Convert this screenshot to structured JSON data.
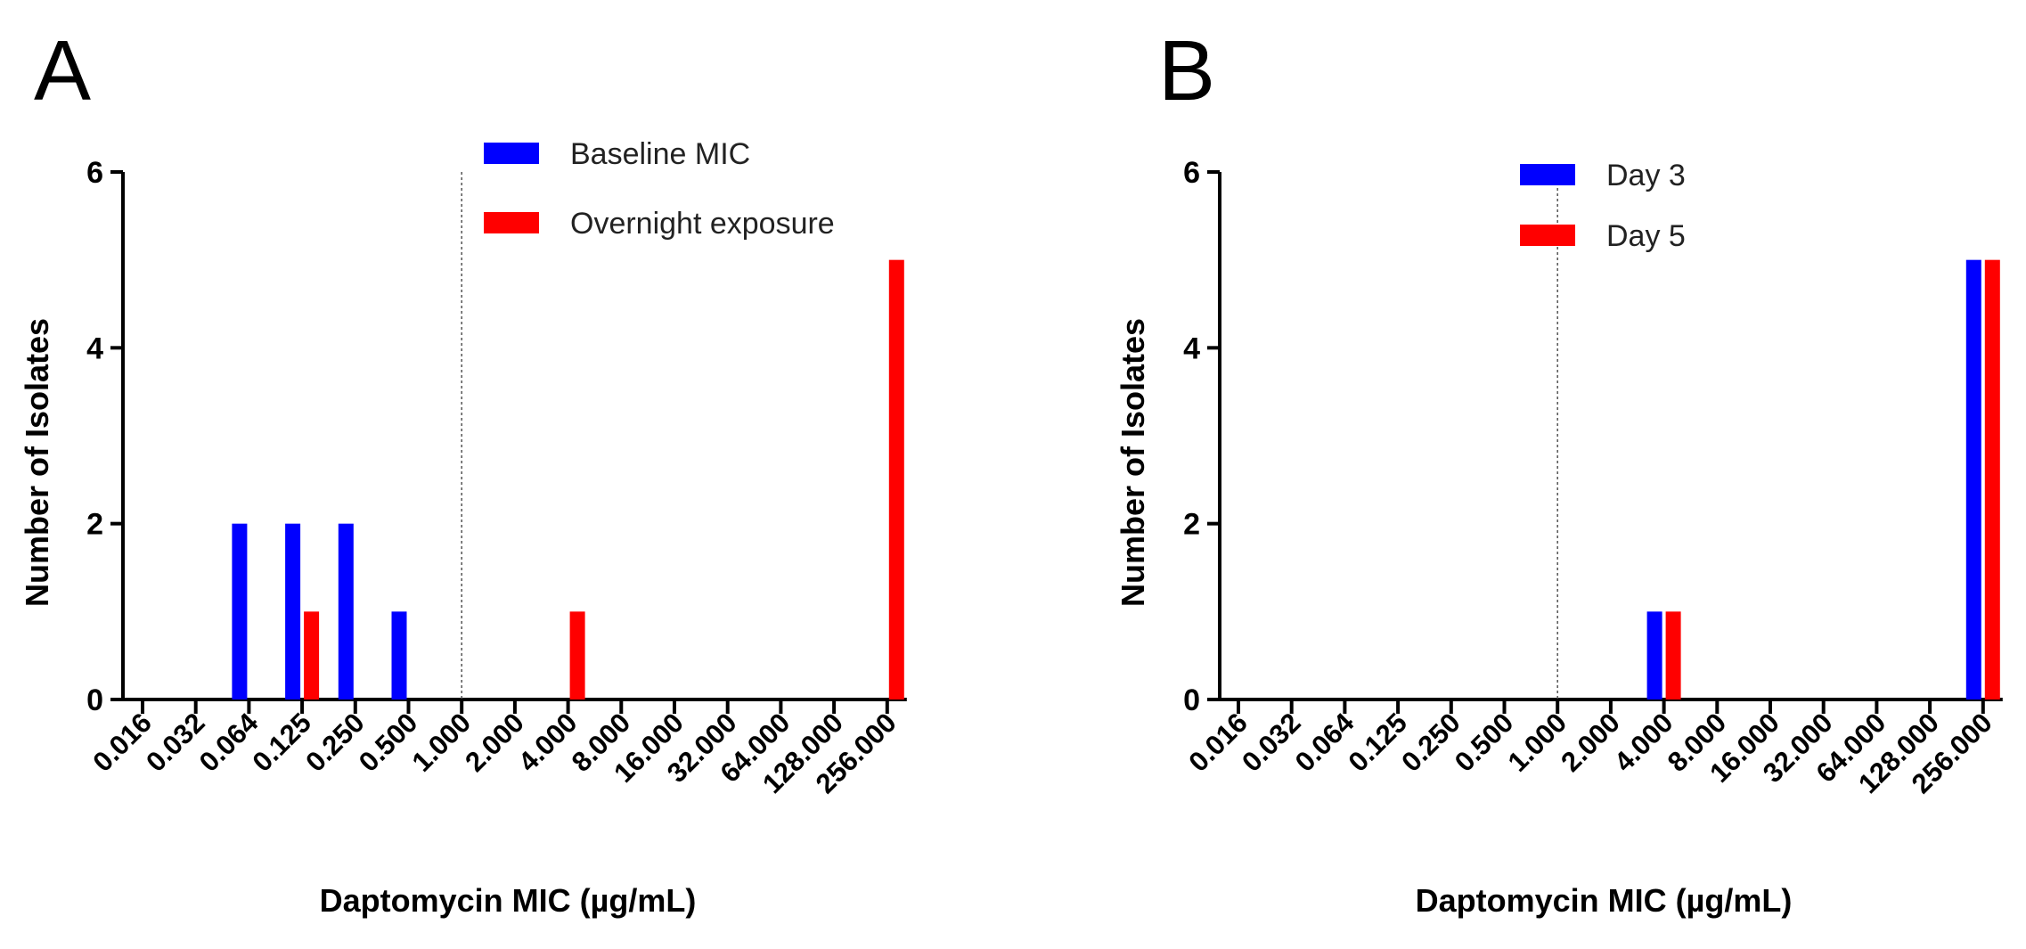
{
  "chart_data": [
    {
      "panel": "A",
      "type": "bar",
      "title": "",
      "xlabel": "Daptomycin MIC (µg/mL)",
      "ylabel": "Number of Isolates",
      "ylim": [
        0,
        6
      ],
      "yticks": [
        0,
        2,
        4,
        6
      ],
      "ytick_labels": [
        "0",
        "2",
        "4",
        "6"
      ],
      "categories": [
        "0.016",
        "0.032",
        "0.064",
        "0.125",
        "0.250",
        "0.500",
        "1.000",
        "2.000",
        "4.000",
        "8.000",
        "16.000",
        "32.000",
        "64.000",
        "128.000",
        "256.000"
      ],
      "breakpoint_after": "1.000",
      "legend_position": "top-right",
      "series": [
        {
          "name": "Baseline MIC",
          "color": "#0000ff",
          "values": [
            0,
            0,
            2,
            2,
            2,
            1,
            0,
            0,
            0,
            0,
            0,
            0,
            0,
            0,
            0
          ]
        },
        {
          "name": "Overnight exposure",
          "color": "#ff0000",
          "values": [
            0,
            0,
            0,
            1,
            0,
            0,
            0,
            0,
            1,
            0,
            0,
            0,
            0,
            0,
            5
          ]
        }
      ]
    },
    {
      "panel": "B",
      "type": "bar",
      "title": "",
      "xlabel": "Daptomycin MIC (µg/mL)",
      "ylabel": "Number of Isolates",
      "ylim": [
        0,
        6
      ],
      "yticks": [
        0,
        2,
        4,
        6
      ],
      "ytick_labels": [
        "0",
        "2",
        "4",
        "6"
      ],
      "categories": [
        "0.016",
        "0.032",
        "0.064",
        "0.125",
        "0.250",
        "0.500",
        "1.000",
        "2.000",
        "4.000",
        "8.000",
        "16.000",
        "32.000",
        "64.000",
        "128.000",
        "256.000"
      ],
      "breakpoint_after": "1.000",
      "legend_position": "top-right",
      "series": [
        {
          "name": "Day 3",
          "color": "#0000ff",
          "values": [
            0,
            0,
            0,
            0,
            0,
            0,
            0,
            0,
            1,
            0,
            0,
            0,
            0,
            0,
            5
          ]
        },
        {
          "name": "Day 5",
          "color": "#ff0000",
          "values": [
            0,
            0,
            0,
            0,
            0,
            0,
            0,
            0,
            1,
            0,
            0,
            0,
            0,
            0,
            5
          ]
        }
      ]
    }
  ]
}
